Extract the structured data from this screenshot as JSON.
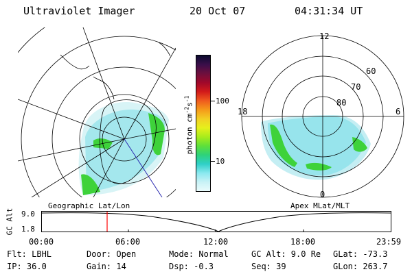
{
  "header": {
    "title": "Ultraviolet Imager",
    "date": "20 Oct 07",
    "time": "04:31:34 UT"
  },
  "left_map": {
    "caption": "Geographic Lat/Lon"
  },
  "right_map": {
    "caption": "Apex MLat/MLT",
    "hour_labels": [
      "12",
      "18",
      "6",
      "0"
    ],
    "lat_labels": [
      "60",
      "70",
      "80"
    ]
  },
  "colorbar": {
    "unit_label": "photon cm",
    "unit_exp1": "-2",
    "unit_mid": "s",
    "unit_exp2": "-1",
    "tick_labels": [
      "100",
      "10"
    ],
    "colors": [
      "#0b0b2e",
      "#3a0e4a",
      "#6e0f3d",
      "#a0082a",
      "#d21a1a",
      "#ef5a1e",
      "#f59a1a",
      "#f2cf24",
      "#e6f01c",
      "#a8ec1c",
      "#5ee03a",
      "#2ed27a",
      "#2fd0c8",
      "#8ae8ef",
      "#c8f2f6",
      "#eafbfc"
    ]
  },
  "timeline": {
    "axis_label": "GC Alt",
    "y_ticks": [
      "9.0",
      "1.8"
    ],
    "x_ticks": [
      "00:00",
      "06:00",
      "12:00",
      "18:00",
      "23:59"
    ],
    "current_marker_time": "04:31:34",
    "marker_color": "#ff0000"
  },
  "footer": {
    "row1": {
      "flt": "Flt: LBHL",
      "door": "Door: Open",
      "mode": "Mode: Normal",
      "gcalt": "GC Alt: 9.0 Re",
      "glat": "GLat: -73.3"
    },
    "row2": {
      "ip": "IP: 36.0",
      "gain": "Gain: 14",
      "dsp": "Dsp:   -0.3",
      "seq": "Seq: 39",
      "glon": "GLon: 263.7"
    }
  },
  "colors": {
    "aurora_green": "#3ed23a",
    "aurora_cyan": "#34cfcf",
    "aurora_pale": "#bfeef2",
    "grid": "#000000"
  }
}
